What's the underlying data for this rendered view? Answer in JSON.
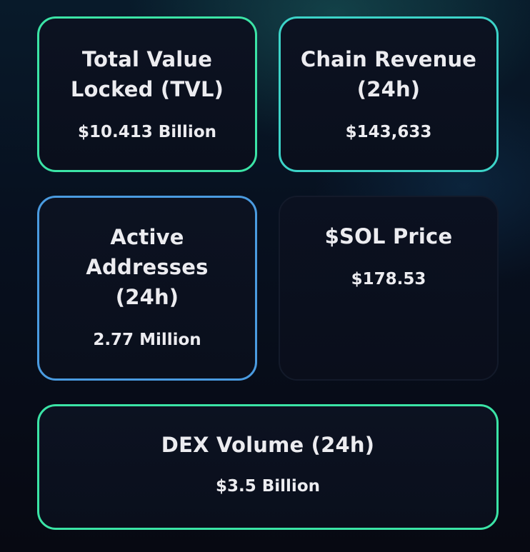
{
  "cards": {
    "tvl": {
      "title": "Total Value Locked (TVL)",
      "value": "$10.413 Billion"
    },
    "revenue": {
      "title": "Chain Revenue (24h)",
      "value": "$143,633"
    },
    "addresses": {
      "title": "Active Addresses (24h)",
      "value": "2.77 Million"
    },
    "sol_price": {
      "title": "$SOL Price",
      "value": "$178.53"
    },
    "dex_volume": {
      "title": "DEX Volume (24h)",
      "value": "$3.5 Billion"
    }
  },
  "colors": {
    "border_green": "#3be4a6",
    "border_teal": "#3cd3c8",
    "border_blue": "#4a9be0",
    "card_background": "#0b1120",
    "text": "#ececf0"
  }
}
